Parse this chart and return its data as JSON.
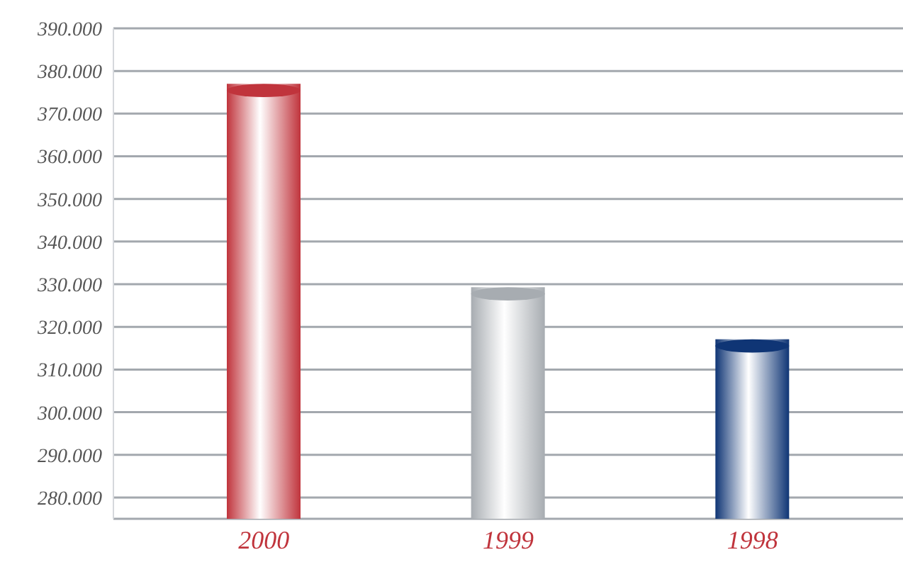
{
  "chart_data": {
    "type": "bar",
    "categories": [
      "2000",
      "1999",
      "1998"
    ],
    "values": [
      377000,
      329300,
      317100
    ],
    "colors": [
      "#c0343c",
      "#a7acb1",
      "#0f3575"
    ],
    "ylim": [
      275000,
      390000
    ],
    "yticks": [
      {
        "value": 280000,
        "label": "280.000"
      },
      {
        "value": 290000,
        "label": "290.000"
      },
      {
        "value": 300000,
        "label": "300.000"
      },
      {
        "value": 310000,
        "label": "310.000"
      },
      {
        "value": 320000,
        "label": "320.000"
      },
      {
        "value": 330000,
        "label": "330.000"
      },
      {
        "value": 340000,
        "label": "340.000"
      },
      {
        "value": 350000,
        "label": "350.000"
      },
      {
        "value": 360000,
        "label": "360.000"
      },
      {
        "value": 370000,
        "label": "370.000"
      },
      {
        "value": 380000,
        "label": "380.000"
      },
      {
        "value": 390000,
        "label": "390.000"
      }
    ],
    "grid": "y"
  }
}
